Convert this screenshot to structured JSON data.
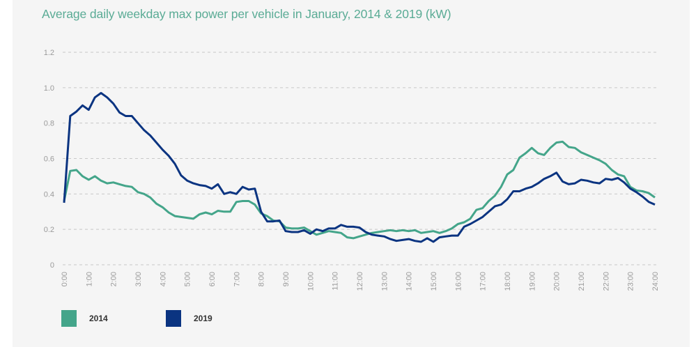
{
  "chart_data": {
    "type": "line",
    "title": "Average daily weekday max power per vehicle in January, 2014 & 2019 (kW)",
    "xlabel": "",
    "ylabel": "",
    "ylim": [
      0,
      1.2
    ],
    "yticks": [
      "0",
      "0.2",
      "0.4",
      "0.6",
      "0.8",
      "1.0",
      "1.2"
    ],
    "xticks": [
      "0:00",
      "1:00",
      "2:00",
      "3:00",
      "4:00",
      "5:00",
      "6:00",
      "7:00",
      "8:00",
      "9:00",
      "10:00",
      "11:00",
      "12:00",
      "13:00",
      "14:00",
      "15:00",
      "16:00",
      "17:00",
      "18:00",
      "19:00",
      "20:00",
      "21:00",
      "22:00",
      "23:00",
      "24:00"
    ],
    "x": [
      "0:00",
      "0:15",
      "0:30",
      "0:45",
      "1:00",
      "1:15",
      "1:30",
      "1:45",
      "2:00",
      "2:15",
      "2:30",
      "2:45",
      "3:00",
      "3:15",
      "3:30",
      "3:45",
      "4:00",
      "4:15",
      "4:30",
      "4:45",
      "5:00",
      "5:15",
      "5:30",
      "5:45",
      "6:00",
      "6:15",
      "6:30",
      "6:45",
      "7:00",
      "7:15",
      "7:30",
      "7:45",
      "8:00",
      "8:15",
      "8:30",
      "8:45",
      "9:00",
      "9:15",
      "9:30",
      "9:45",
      "10:00",
      "10:15",
      "10:30",
      "10:45",
      "11:00",
      "11:15",
      "11:30",
      "11:45",
      "12:00",
      "12:15",
      "12:30",
      "12:45",
      "13:00",
      "13:15",
      "13:30",
      "13:45",
      "14:00",
      "14:15",
      "14:30",
      "14:45",
      "15:00",
      "15:15",
      "15:30",
      "15:45",
      "16:00",
      "16:15",
      "16:30",
      "16:45",
      "17:00",
      "17:15",
      "17:30",
      "17:45",
      "18:00",
      "18:15",
      "18:30",
      "18:45",
      "19:00",
      "19:15",
      "19:30",
      "19:45",
      "20:00",
      "20:15",
      "20:30",
      "20:45",
      "21:00",
      "21:15",
      "21:30",
      "21:45",
      "22:00",
      "22:15",
      "22:30",
      "22:45",
      "23:00",
      "23:15",
      "23:30",
      "23:45",
      "24:00"
    ],
    "grid": true,
    "legend_position": "bottom-left",
    "series": [
      {
        "name": "2014",
        "color": "#44a58a",
        "values": [
          0.36,
          0.53,
          0.535,
          0.5,
          0.48,
          0.5,
          0.475,
          0.46,
          0.465,
          0.455,
          0.445,
          0.44,
          0.41,
          0.4,
          0.38,
          0.345,
          0.325,
          0.295,
          0.275,
          0.27,
          0.265,
          0.26,
          0.285,
          0.295,
          0.285,
          0.305,
          0.3,
          0.3,
          0.355,
          0.36,
          0.36,
          0.34,
          0.29,
          0.275,
          0.25,
          0.245,
          0.21,
          0.205,
          0.205,
          0.21,
          0.19,
          0.17,
          0.18,
          0.19,
          0.185,
          0.18,
          0.155,
          0.15,
          0.16,
          0.17,
          0.18,
          0.185,
          0.19,
          0.195,
          0.19,
          0.195,
          0.19,
          0.195,
          0.18,
          0.185,
          0.19,
          0.18,
          0.19,
          0.205,
          0.23,
          0.24,
          0.26,
          0.31,
          0.32,
          0.36,
          0.39,
          0.44,
          0.51,
          0.535,
          0.605,
          0.63,
          0.66,
          0.63,
          0.62,
          0.66,
          0.69,
          0.695,
          0.665,
          0.66,
          0.635,
          0.62,
          0.605,
          0.59,
          0.57,
          0.535,
          0.51,
          0.5,
          0.44,
          0.42,
          0.415,
          0.405,
          0.38
        ]
      },
      {
        "name": "2019",
        "color": "#0b3481",
        "values": [
          0.35,
          0.84,
          0.865,
          0.9,
          0.875,
          0.945,
          0.97,
          0.945,
          0.91,
          0.86,
          0.84,
          0.84,
          0.8,
          0.76,
          0.73,
          0.69,
          0.65,
          0.615,
          0.57,
          0.505,
          0.475,
          0.46,
          0.45,
          0.445,
          0.43,
          0.455,
          0.4,
          0.41,
          0.4,
          0.44,
          0.425,
          0.43,
          0.3,
          0.245,
          0.245,
          0.25,
          0.19,
          0.185,
          0.185,
          0.195,
          0.175,
          0.2,
          0.19,
          0.205,
          0.205,
          0.225,
          0.215,
          0.215,
          0.21,
          0.185,
          0.17,
          0.165,
          0.16,
          0.145,
          0.135,
          0.14,
          0.145,
          0.135,
          0.13,
          0.15,
          0.13,
          0.155,
          0.16,
          0.165,
          0.165,
          0.215,
          0.23,
          0.25,
          0.27,
          0.3,
          0.33,
          0.34,
          0.37,
          0.415,
          0.415,
          0.43,
          0.44,
          0.46,
          0.485,
          0.5,
          0.52,
          0.47,
          0.455,
          0.46,
          0.48,
          0.475,
          0.465,
          0.46,
          0.485,
          0.48,
          0.49,
          0.465,
          0.43,
          0.41,
          0.385,
          0.355,
          0.34
        ]
      }
    ]
  }
}
